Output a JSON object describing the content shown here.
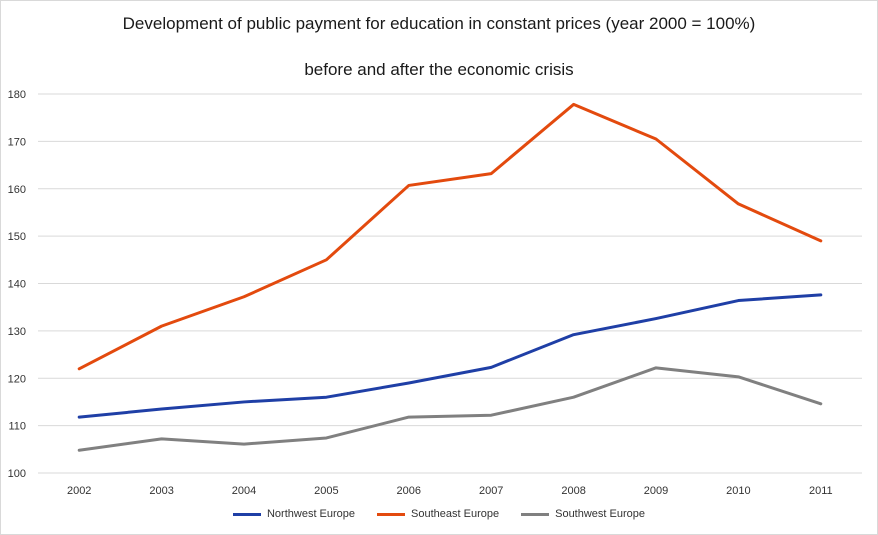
{
  "chart_data": {
    "type": "line",
    "title": "Development of public payment for education in constant prices (year 2000 = 100%)",
    "subtitle": "before and after the economic crisis",
    "xlabel": "",
    "ylabel": "",
    "categories": [
      "2002",
      "2003",
      "2004",
      "2005",
      "2006",
      "2007",
      "2008",
      "2009",
      "2010",
      "2011"
    ],
    "ylim": [
      100,
      180
    ],
    "yticks": [
      100,
      110,
      120,
      130,
      140,
      150,
      160,
      170,
      180
    ],
    "grid": "horizontal",
    "legend_position": "bottom",
    "series": [
      {
        "name": "Northwest Europe",
        "color": "#1f3fa6",
        "values": [
          111.8,
          113.5,
          115.0,
          116.0,
          119.0,
          122.3,
          129.2,
          132.6,
          136.4,
          137.6
        ]
      },
      {
        "name": "Southeast Europe",
        "color": "#e34a0e",
        "values": [
          122.0,
          131.0,
          137.2,
          145.0,
          160.7,
          163.2,
          177.8,
          170.5,
          156.8,
          149.0
        ]
      },
      {
        "name": "Southwest Europe",
        "color": "#808080",
        "values": [
          104.8,
          107.2,
          106.1,
          107.4,
          111.8,
          112.2,
          116.0,
          122.2,
          120.3,
          114.6
        ]
      }
    ]
  }
}
